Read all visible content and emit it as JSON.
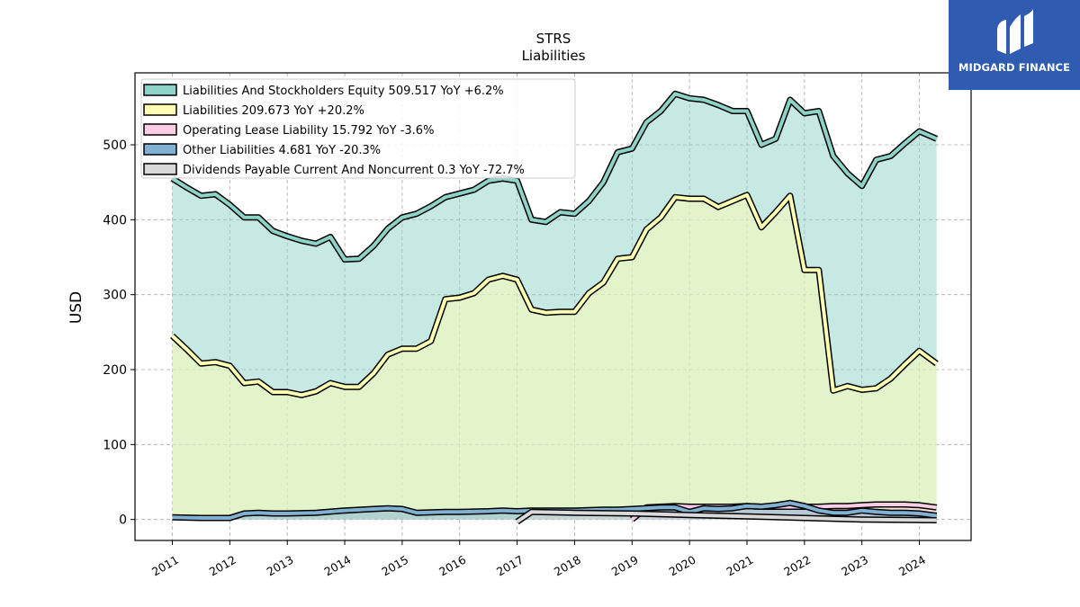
{
  "brand": {
    "name": "MIDGARD FINANCE",
    "logo_icon": "midgard-logo-icon",
    "color": "#2f5bb0"
  },
  "chart_data": {
    "type": "area",
    "title": "STRS",
    "subtitle": "Liabilities",
    "xlabel": "",
    "ylabel": "USD",
    "ylim": [
      -28,
      596
    ],
    "xlim": [
      2010.35,
      2024.9
    ],
    "yticks": [
      0,
      100,
      200,
      300,
      400,
      500
    ],
    "xticks": [
      "2011",
      "2012",
      "2013",
      "2014",
      "2015",
      "2016",
      "2017",
      "2018",
      "2019",
      "2020",
      "2021",
      "2022",
      "2023",
      "2024"
    ],
    "grid": true,
    "legend_position": "top-left",
    "series": [
      {
        "name": "Liabilities And Stockholders Equity",
        "label": "Liabilities And Stockholders Equity  509.517 YoY +6.2%",
        "color": "#8dd3c7",
        "x": [
          2011.0,
          2011.25,
          2011.5,
          2011.75,
          2012.0,
          2012.25,
          2012.5,
          2012.75,
          2013.0,
          2013.25,
          2013.5,
          2013.75,
          2014.0,
          2014.25,
          2014.5,
          2014.75,
          2015.0,
          2015.25,
          2015.5,
          2015.75,
          2016.0,
          2016.25,
          2016.5,
          2016.75,
          2017.0,
          2017.25,
          2017.5,
          2017.75,
          2018.0,
          2018.25,
          2018.5,
          2018.75,
          2019.0,
          2019.25,
          2019.5,
          2019.75,
          2020.0,
          2020.25,
          2020.5,
          2020.75,
          2021.0,
          2021.25,
          2021.5,
          2021.75,
          2022.0,
          2022.25,
          2022.5,
          2022.75,
          2023.0,
          2023.25,
          2023.5,
          2023.75,
          2024.0,
          2024.3
        ],
        "values": [
          455,
          443,
          432,
          434,
          420,
          403,
          403,
          385,
          378,
          372,
          368,
          377,
          347,
          348,
          365,
          388,
          403,
          408,
          418,
          430,
          435,
          440,
          452,
          455,
          452,
          400,
          397,
          410,
          408,
          425,
          450,
          490,
          495,
          530,
          545,
          568,
          562,
          560,
          553,
          545,
          545,
          500,
          508,
          560,
          542,
          545,
          485,
          462,
          445,
          480,
          485,
          502,
          518,
          508
        ]
      },
      {
        "name": "Liabilities",
        "label": "Liabilities  209.673 YoY +20.2%",
        "color": "#ffffb3",
        "x": [
          2011.0,
          2011.25,
          2011.5,
          2011.75,
          2012.0,
          2012.25,
          2012.5,
          2012.75,
          2013.0,
          2013.25,
          2013.5,
          2013.75,
          2014.0,
          2014.25,
          2014.5,
          2014.75,
          2015.0,
          2015.25,
          2015.5,
          2015.75,
          2016.0,
          2016.25,
          2016.5,
          2016.75,
          2017.0,
          2017.25,
          2017.5,
          2017.75,
          2018.0,
          2018.25,
          2018.5,
          2018.75,
          2019.0,
          2019.25,
          2019.5,
          2019.75,
          2020.0,
          2020.25,
          2020.5,
          2020.75,
          2021.0,
          2021.25,
          2021.5,
          2021.75,
          2022.0,
          2022.25,
          2022.5,
          2022.75,
          2023.0,
          2023.25,
          2023.5,
          2023.75,
          2024.0,
          2024.3
        ],
        "values": [
          245,
          227,
          208,
          210,
          205,
          182,
          184,
          170,
          170,
          166,
          171,
          182,
          177,
          177,
          195,
          220,
          228,
          228,
          238,
          294,
          296,
          302,
          320,
          325,
          320,
          280,
          276,
          277,
          277,
          302,
          316,
          348,
          350,
          387,
          403,
          430,
          428,
          428,
          417,
          425,
          433,
          390,
          410,
          432,
          333,
          333,
          172,
          178,
          173,
          175,
          188,
          207,
          225,
          208
        ]
      },
      {
        "name": "Operating Lease Liability",
        "label": "Operating Lease Liability  15.792 YoY -3.6%",
        "color": "#fccde5",
        "x": [
          2019.0,
          2019.25,
          2019.5,
          2019.75,
          2020.0,
          2020.25,
          2020.5,
          2020.75,
          2021.0,
          2021.25,
          2021.5,
          2021.75,
          2022.0,
          2022.25,
          2022.5,
          2022.75,
          2023.0,
          2023.25,
          2023.5,
          2023.75,
          2024.0,
          2024.3
        ],
        "values": [
          0,
          16,
          17,
          18,
          17,
          17,
          17,
          17,
          18,
          17,
          17,
          17,
          17,
          17,
          18,
          18,
          19,
          20,
          20,
          20,
          19,
          16
        ]
      },
      {
        "name": "Other Liabilities",
        "label": "Other Liabilities  4.681 YoY -20.3%",
        "color": "#80b1d3",
        "x": [
          2011.0,
          2011.5,
          2012.0,
          2012.25,
          2012.5,
          2012.75,
          2013.0,
          2013.5,
          2014.0,
          2014.5,
          2014.75,
          2015.0,
          2015.25,
          2015.75,
          2016.0,
          2016.5,
          2016.75,
          2017.0,
          2017.25,
          2017.75,
          2018.0,
          2018.5,
          2018.75,
          2019.0,
          2019.5,
          2019.75,
          2020.0,
          2020.25,
          2020.5,
          2020.75,
          2021.0,
          2021.25,
          2021.5,
          2021.75,
          2022.0,
          2022.25,
          2022.5,
          2022.75,
          2023.0,
          2023.25,
          2023.5,
          2023.75,
          2024.0,
          2024.3
        ],
        "values": [
          3,
          2,
          2,
          8,
          9,
          8,
          8,
          9,
          12,
          14,
          15,
          14,
          9,
          10,
          10,
          11,
          12,
          11,
          12,
          12,
          12,
          13,
          13,
          14,
          16,
          16,
          10,
          15,
          14,
          15,
          18,
          17,
          19,
          22,
          18,
          12,
          9,
          9,
          12,
          10,
          9,
          9,
          8,
          5
        ]
      },
      {
        "name": "Dividends Payable Current And Noncurrent",
        "label": "Dividends Payable Current And Noncurrent  0.3 YoY -72.7%",
        "color": "#d9d9d9",
        "x": [
          2017.0,
          2017.25,
          2018.0,
          2019.0,
          2020.0,
          2021.0,
          2022.0,
          2023.0,
          2024.3
        ],
        "values": [
          -3,
          10,
          9,
          8,
          6,
          4,
          2,
          0,
          -1
        ]
      }
    ]
  }
}
